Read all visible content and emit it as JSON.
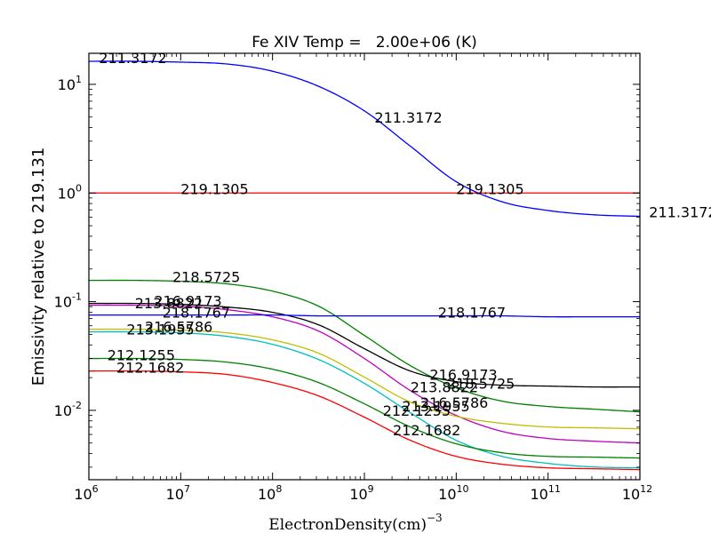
{
  "chart_data": {
    "type": "line",
    "title": "Fe XIV Temp =   2.00e+06 (K)",
    "xlabel": "ElectronDensity(cm)",
    "xlabel_superscript": "−3",
    "ylabel": "Emissivity relative to 219.131",
    "xscale": "log",
    "yscale": "log",
    "xlim": [
      1000000.0,
      1000000000000.0
    ],
    "ylim": [
      0.0023,
      19.3
    ],
    "grid": false,
    "legend": "none",
    "x_ticks": [
      {
        "exp": 6,
        "base": "10",
        "sup": "6"
      },
      {
        "exp": 7,
        "base": "10",
        "sup": "7"
      },
      {
        "exp": 8,
        "base": "10",
        "sup": "8"
      },
      {
        "exp": 9,
        "base": "10",
        "sup": "9"
      },
      {
        "exp": 10,
        "base": "10",
        "sup": "10"
      },
      {
        "exp": 11,
        "base": "10",
        "sup": "11"
      },
      {
        "exp": 12,
        "base": "10",
        "sup": "12"
      }
    ],
    "y_ticks": [
      {
        "exp": -2,
        "base": "10",
        "sup": "-2"
      },
      {
        "exp": -1,
        "base": "10",
        "sup": "-1"
      },
      {
        "exp": 0,
        "base": "10",
        "sup": "0"
      },
      {
        "exp": 1,
        "base": "10",
        "sup": "1"
      }
    ],
    "log10_density": [
      6,
      6.5,
      7,
      7.5,
      8,
      8.5,
      9,
      9.5,
      10,
      10.5,
      11,
      11.5,
      12
    ],
    "series": [
      {
        "name": "211.3172",
        "color": "#0000ff",
        "values": [
          16.3,
          16.3,
          16.0,
          15.4,
          13.2,
          9.6,
          5.7,
          2.7,
          1.27,
          0.83,
          0.69,
          0.63,
          0.61
        ]
      },
      {
        "name": "219.1305",
        "color": "#ff0000",
        "values": [
          1.0,
          1.0,
          1.0,
          1.0,
          1.0,
          1.0,
          1.0,
          1.0,
          1.0,
          1.0,
          1.0,
          1.0,
          1.0
        ]
      },
      {
        "name": "218.5725",
        "color": "#008000",
        "values": [
          0.157,
          0.157,
          0.154,
          0.146,
          0.125,
          0.091,
          0.0489,
          0.0258,
          0.0161,
          0.01215,
          0.01085,
          0.01025,
          0.00969
        ]
      },
      {
        "name": "216.9173",
        "color": "#000000",
        "values": [
          0.0963,
          0.0963,
          0.0945,
          0.0893,
          0.0798,
          0.0613,
          0.0369,
          0.023,
          0.01837,
          0.01703,
          0.01671,
          0.01641,
          0.01641
        ]
      },
      {
        "name": "213.8822",
        "color": "#bf00bf",
        "values": [
          0.0927,
          0.0927,
          0.091,
          0.0844,
          0.0726,
          0.0537,
          0.03,
          0.01521,
          0.00898,
          0.0064,
          0.00551,
          0.0052,
          0.00501
        ]
      },
      {
        "name": "218.1767",
        "color": "#0000ff",
        "values": [
          0.0754,
          0.0754,
          0.0754,
          0.0754,
          0.0754,
          0.074,
          0.074,
          0.074,
          0.074,
          0.074,
          0.0726,
          0.0726,
          0.0726
        ]
      },
      {
        "name": "216.5786",
        "color": "#bfbf00",
        "values": [
          0.0558,
          0.0558,
          0.0547,
          0.0517,
          0.0445,
          0.0336,
          0.0202,
          0.01191,
          0.00881,
          0.00759,
          0.00703,
          0.0069,
          0.00677
        ]
      },
      {
        "name": "213.1955",
        "color": "#00bfbf",
        "values": [
          0.0527,
          0.0527,
          0.0517,
          0.048,
          0.0405,
          0.0294,
          0.0177,
          0.00951,
          0.0053,
          0.00377,
          0.00325,
          0.00301,
          0.00296
        ]
      },
      {
        "name": "212.1255",
        "color": "#008000",
        "values": [
          0.03,
          0.03,
          0.0294,
          0.0278,
          0.0239,
          0.01803,
          0.01148,
          0.00703,
          0.00492,
          0.00407,
          0.00377,
          0.00371,
          0.00364
        ]
      },
      {
        "name": "212.1682",
        "color": "#ff0000",
        "values": [
          0.023,
          0.023,
          0.0226,
          0.0214,
          0.01803,
          0.01359,
          0.00865,
          0.0053,
          0.00377,
          0.00319,
          0.00296,
          0.0029,
          0.00285
        ]
      }
    ],
    "annotations": [
      {
        "text": "211.3172",
        "log10_density": 6.11,
        "value": 16.0
      },
      {
        "text": "211.3172",
        "log10_density": 9.11,
        "value": 4.54
      },
      {
        "text": "211.3172",
        "log10_density": 12.1,
        "value": 0.61
      },
      {
        "text": "219.1305",
        "log10_density": 7.0,
        "value": 1.0
      },
      {
        "text": "219.1305",
        "log10_density": 10.0,
        "value": 1.0
      },
      {
        "text": "218.5725",
        "log10_density": 6.91,
        "value": 0.154
      },
      {
        "text": "218.5725",
        "log10_density": 9.9,
        "value": 0.0161
      },
      {
        "text": "216.9173",
        "log10_density": 6.71,
        "value": 0.093
      },
      {
        "text": "216.9173",
        "log10_density": 9.71,
        "value": 0.0195
      },
      {
        "text": "213.8822",
        "log10_density": 6.5,
        "value": 0.089
      },
      {
        "text": "213.8822",
        "log10_density": 9.5,
        "value": 0.015
      },
      {
        "text": "218.1767",
        "log10_density": 6.8,
        "value": 0.0726
      },
      {
        "text": "218.1767",
        "log10_density": 9.8,
        "value": 0.0726
      },
      {
        "text": "216.5786",
        "log10_density": 6.61,
        "value": 0.0537
      },
      {
        "text": "216.5786",
        "log10_density": 9.61,
        "value": 0.0108
      },
      {
        "text": "213.1955",
        "log10_density": 6.41,
        "value": 0.0508
      },
      {
        "text": "213.1955",
        "log10_density": 9.41,
        "value": 0.01
      },
      {
        "text": "212.1255",
        "log10_density": 6.2,
        "value": 0.0294
      },
      {
        "text": "212.1255",
        "log10_density": 9.2,
        "value": 0.0091
      },
      {
        "text": "212.1682",
        "log10_density": 6.3,
        "value": 0.0226
      },
      {
        "text": "212.1682",
        "log10_density": 9.31,
        "value": 0.006
      }
    ]
  }
}
